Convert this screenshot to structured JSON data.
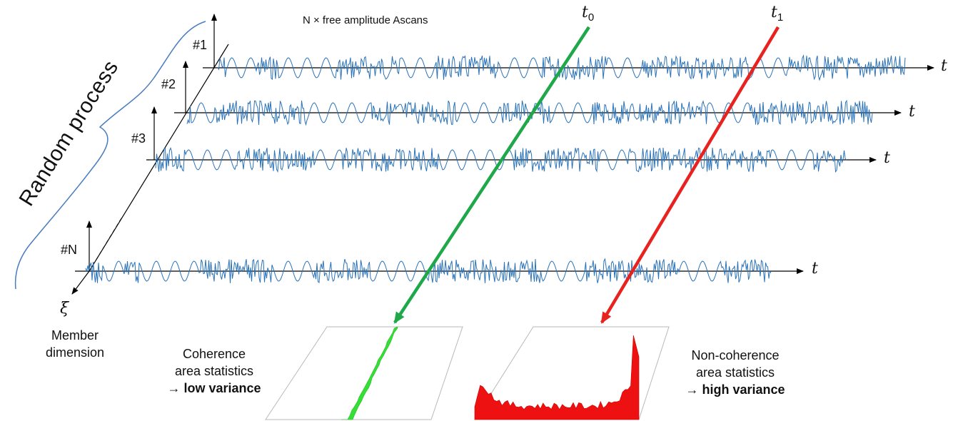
{
  "header": "N × free amplitude Ascans",
  "time_markers": [
    {
      "name": "t",
      "sub": "0"
    },
    {
      "name": "t",
      "sub": "1"
    }
  ],
  "ensemble_label": "Random process",
  "members": [
    {
      "label": "#1",
      "axis": "t"
    },
    {
      "label": "#2",
      "axis": "t"
    },
    {
      "label": "#3",
      "axis": "t"
    },
    {
      "label": "#N",
      "axis": "t"
    }
  ],
  "member_axis": {
    "symbol": "ξ",
    "caption_line1": "Member",
    "caption_line2": "dimension"
  },
  "coherence": {
    "line1": "Coherence",
    "line2": "area statistics",
    "arrow": "→",
    "line3": "low variance"
  },
  "noncoherence": {
    "line1": "Non-coherence",
    "line2": "area statistics",
    "arrow": "→",
    "line3": "high variance"
  },
  "colors": {
    "signal": "#2a72b8",
    "green": "#1ea84a",
    "red": "#e8221e",
    "green_hist": "#33e033",
    "red_hist": "#ee1111"
  }
}
